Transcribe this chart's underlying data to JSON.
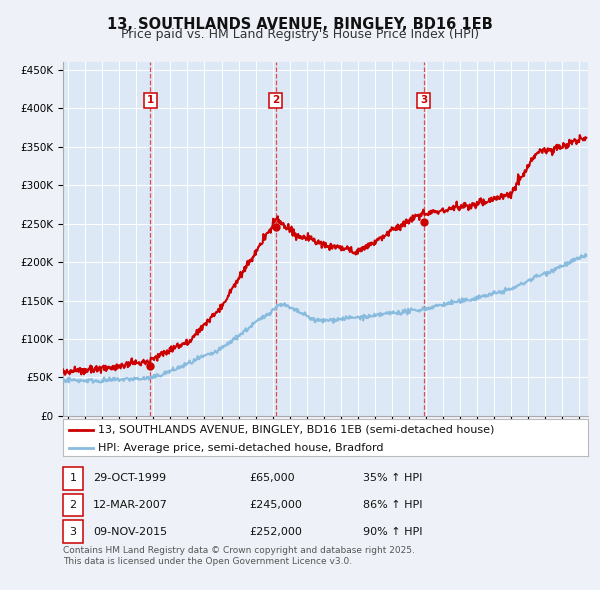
{
  "title": "13, SOUTHLANDS AVENUE, BINGLEY, BD16 1EB",
  "subtitle": "Price paid vs. HM Land Registry's House Price Index (HPI)",
  "background_color": "#eef2f8",
  "plot_bg_color": "#dce8f5",
  "grid_color": "#ffffff",
  "ylim": [
    0,
    460000
  ],
  "yticks": [
    0,
    50000,
    100000,
    150000,
    200000,
    250000,
    300000,
    350000,
    400000,
    450000
  ],
  "ytick_labels": [
    "£0",
    "£50K",
    "£100K",
    "£150K",
    "£200K",
    "£250K",
    "£300K",
    "£350K",
    "£400K",
    "£450K"
  ],
  "xlim_start": 1994.7,
  "xlim_end": 2025.5,
  "xticks": [
    1995,
    1996,
    1997,
    1998,
    1999,
    2000,
    2001,
    2002,
    2003,
    2004,
    2005,
    2006,
    2007,
    2008,
    2009,
    2010,
    2011,
    2012,
    2013,
    2014,
    2015,
    2016,
    2017,
    2018,
    2019,
    2020,
    2021,
    2022,
    2023,
    2024,
    2025
  ],
  "sale_color": "#cc0000",
  "hpi_color": "#88bbdd",
  "sale_linewidth": 1.5,
  "hpi_linewidth": 1.5,
  "vline_color": "#dd3333",
  "sale_legend": "13, SOUTHLANDS AVENUE, BINGLEY, BD16 1EB (semi-detached house)",
  "hpi_legend": "HPI: Average price, semi-detached house, Bradford",
  "transactions": [
    {
      "num": 1,
      "date_x": 1999.83,
      "price": 65000,
      "label": "1",
      "date_str": "29-OCT-1999",
      "price_str": "£65,000",
      "hpi_pct": "35% ↑ HPI"
    },
    {
      "num": 2,
      "date_x": 2007.19,
      "price": 245000,
      "label": "2",
      "date_str": "12-MAR-2007",
      "price_str": "£245,000",
      "hpi_pct": "86% ↑ HPI"
    },
    {
      "num": 3,
      "date_x": 2015.86,
      "price": 252000,
      "label": "3",
      "date_str": "09-NOV-2015",
      "price_str": "£252,000",
      "hpi_pct": "90% ↑ HPI"
    }
  ],
  "footnote1": "Contains HM Land Registry data © Crown copyright and database right 2025.",
  "footnote2": "This data is licensed under the Open Government Licence v3.0.",
  "title_fontsize": 10.5,
  "subtitle_fontsize": 9,
  "tick_fontsize": 7.5,
  "legend_fontsize": 8,
  "table_fontsize": 8,
  "footnote_fontsize": 6.5
}
